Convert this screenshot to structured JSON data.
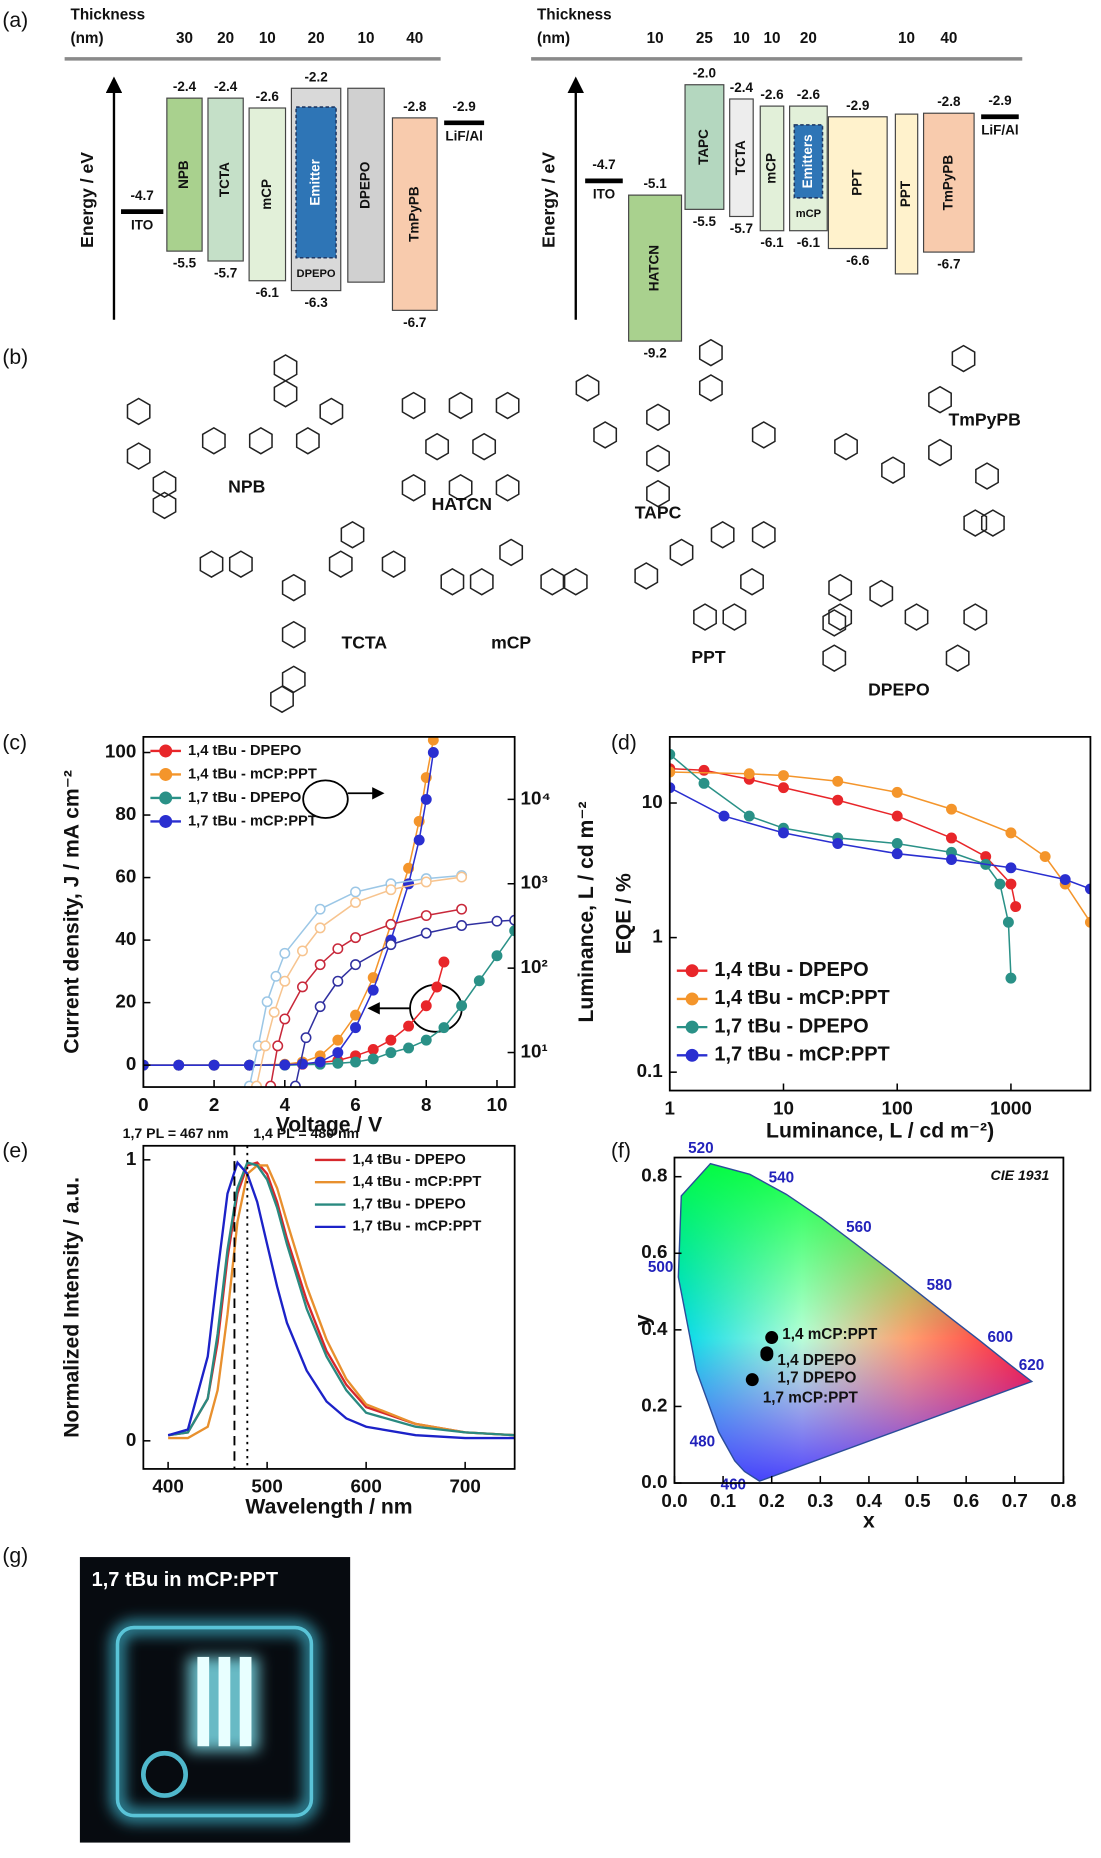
{
  "panel_labels": [
    "(a)",
    "(b)",
    "(c)",
    "(d)",
    "(e)",
    "(f)",
    "(g)"
  ],
  "energy_diagrams": [
    {
      "thickness_title": "Thickness",
      "thickness_unit": "(nm)",
      "axis_label": "Energy / eV",
      "electrodes": [
        {
          "name": "ITO",
          "level": -4.7
        },
        {
          "name": "LiF/Al",
          "level": -2.9
        }
      ],
      "layers": [
        {
          "name": "NPB",
          "lumo": -2.4,
          "homo": -5.5,
          "thickness": 30,
          "color": "#a9d18e"
        },
        {
          "name": "TCTA",
          "lumo": -2.4,
          "homo": -5.7,
          "thickness": 20,
          "color": "#c5e0c8"
        },
        {
          "name": "mCP",
          "lumo": -2.6,
          "homo": -6.1,
          "thickness": 10,
          "color": "#e2f0d9"
        },
        {
          "name": "DPEPO",
          "lumo": -2.2,
          "homo": -6.3,
          "thickness": 20,
          "color": "#d9d9d9",
          "emitter": "Emitter"
        },
        {
          "name": "DPEPO",
          "thickness": 10,
          "color": "#d0d0d0"
        },
        {
          "name": "TmPyPB",
          "lumo": -2.8,
          "homo": -6.7,
          "thickness": 40,
          "color": "#f8cbad"
        }
      ]
    },
    {
      "thickness_title": "Thickness",
      "thickness_unit": "(nm)",
      "axis_label": "Energy / eV",
      "electrodes": [
        {
          "name": "ITO",
          "level": -4.7
        },
        {
          "name": "LiF/Al",
          "level": -2.9
        }
      ],
      "layers": [
        {
          "name": "HATCN",
          "lumo": -5.1,
          "homo": -9.2,
          "thickness": 10,
          "color": "#a9d18e"
        },
        {
          "name": "TAPC",
          "lumo": {
            "value": -2,
            "label": "-2.0"
          },
          "homo": -5.5,
          "thickness": 25,
          "color": "#b4d7bf"
        },
        {
          "name": "TCTA",
          "lumo": -2.4,
          "homo": -5.7,
          "thickness": 10,
          "color": "#ededed"
        },
        {
          "name": "mCP",
          "lumo": -2.6,
          "homo": -6.1,
          "thickness": 10,
          "color": "#e2f0d9"
        },
        {
          "name": "mCP",
          "lumo": -2.6,
          "homo": -6.1,
          "thickness": 20,
          "color": "#e2f0d9",
          "emitter": "Emitters"
        },
        {
          "name": "PPT",
          "lumo": -2.9,
          "homo": -6.6,
          "color": "#fff2cc"
        },
        {
          "name": "PPT",
          "thickness": 10,
          "color": "#fff2cc"
        },
        {
          "name": "TmPyPB",
          "lumo": -2.8,
          "homo": -6.7,
          "thickness": 40,
          "color": "#f8cbad"
        }
      ]
    }
  ],
  "molecules": [
    "NPB",
    "HATCN",
    "TAPC",
    "TmPyPB",
    "TCTA",
    "mCP",
    "PPT",
    "DPEPO"
  ],
  "chart_data": [
    {
      "type": "line",
      "x_label": "Voltage / V",
      "y_label": "Current density, J / mA cm⁻²",
      "y2_label": "Luminance, L / cd m⁻²",
      "xlim": [
        0,
        10.5
      ],
      "xticks": [
        0,
        2,
        4,
        6,
        8,
        10
      ],
      "ylim": [
        -7,
        105
      ],
      "yticks": [
        0,
        20,
        40,
        60,
        80,
        100
      ],
      "y2lim": [
        3.9,
        55000
      ],
      "y2_scale": "log",
      "y2ticks": [
        {
          "value": 10,
          "label": "10¹"
        },
        {
          "value": 100,
          "label": "10²"
        },
        {
          "value": 1000,
          "label": "10³"
        },
        {
          "value": 10000,
          "label": "10⁴"
        }
      ],
      "legend": "upper left",
      "markers": true,
      "series": [
        {
          "name": "1,4 tBu - DPEPO",
          "color": "#e8262a",
          "x": [
            0,
            1,
            2,
            3,
            4,
            4.5,
            5,
            5.5,
            6,
            6.5,
            7,
            7.5,
            8,
            8.3,
            8.5
          ],
          "values": [
            0,
            0,
            0,
            0,
            0.1,
            0.3,
            0.8,
            1.5,
            3,
            5,
            8,
            12.5,
            19,
            25,
            33
          ]
        },
        {
          "name": "1,4 tBu - mCP:PPT",
          "color": "#f4952b",
          "x": [
            0,
            1,
            2,
            3,
            4,
            4.5,
            5,
            5.5,
            6,
            6.5,
            7,
            7.5,
            7.8,
            8,
            8.2
          ],
          "values": [
            0,
            0,
            0,
            0,
            0.3,
            1,
            3,
            8,
            16,
            28,
            45,
            63,
            78,
            92,
            104
          ]
        },
        {
          "name": "1,7 tBu - DPEPO",
          "color": "#2a9187",
          "x": [
            0,
            1,
            2,
            3,
            4,
            5,
            5.5,
            6,
            6.5,
            7,
            7.5,
            8,
            8.5,
            9,
            9.5,
            10,
            10.5
          ],
          "values": [
            0,
            0,
            0,
            0,
            0,
            0.3,
            0.6,
            1,
            2,
            4,
            5.5,
            8,
            12,
            19,
            27,
            35,
            43
          ]
        },
        {
          "name": "1,7 tBu - mCP:PPT",
          "color": "#2a2fd0",
          "x": [
            0,
            1,
            2,
            3,
            4,
            4.5,
            5,
            5.5,
            6,
            6.5,
            7,
            7.5,
            7.8,
            8,
            8.2
          ],
          "values": [
            0,
            0,
            0,
            0,
            0.1,
            0.4,
            1,
            4,
            12,
            24,
            40,
            58,
            72,
            85,
            100
          ]
        },
        {
          "color": "#9cc7e6",
          "axis": "y2",
          "hollow": true,
          "x": [
            3,
            3.25,
            3.5,
            3.75,
            4,
            5,
            6,
            7,
            8,
            9
          ],
          "values": [
            4,
            12,
            40,
            80,
            150,
            500,
            800,
            1000,
            1150,
            1250
          ]
        },
        {
          "color": "#f7c48f",
          "axis": "y2",
          "hollow": true,
          "x": [
            3.2,
            3.45,
            3.7,
            4,
            4.5,
            5,
            6,
            7,
            8,
            9
          ],
          "values": [
            4,
            12,
            30,
            70,
            160,
            300,
            600,
            850,
            1050,
            1200
          ]
        },
        {
          "color": "#c8283a",
          "axis": "y2",
          "hollow": true,
          "x": [
            3.6,
            3.8,
            4,
            4.5,
            5,
            5.5,
            6,
            7,
            8,
            9
          ],
          "values": [
            4,
            12,
            25,
            60,
            110,
            170,
            230,
            330,
            420,
            500
          ]
        },
        {
          "color": "#3030a0",
          "axis": "y2",
          "hollow": true,
          "x": [
            4.3,
            4.6,
            5,
            5.5,
            6,
            7,
            8,
            9,
            10,
            10.5
          ],
          "values": [
            4,
            15,
            35,
            70,
            110,
            190,
            260,
            320,
            360,
            370
          ]
        }
      ]
    },
    {
      "type": "line",
      "x_label": "Luminance, L / cd m⁻²)",
      "y_label": "EQE / %",
      "x_scale": "log",
      "y_scale": "log",
      "xlim": [
        1,
        5000
      ],
      "xticks": [
        1,
        10,
        100,
        1000
      ],
      "ylim": [
        0.073,
        31
      ],
      "yticks": [
        0.1,
        1,
        10
      ],
      "legend": "lower left",
      "markers": true,
      "series": [
        {
          "name": "1,4 tBu - DPEPO",
          "color": "#e8262a",
          "x": [
            1,
            2,
            5,
            10,
            30,
            100,
            300,
            600,
            1000,
            1100
          ],
          "values": [
            18,
            17.5,
            15,
            13,
            10.5,
            8,
            5.5,
            4,
            2.5,
            1.7
          ]
        },
        {
          "name": "1,4 tBu - mCP:PPT",
          "color": "#f4952b",
          "x": [
            1,
            5,
            10,
            30,
            100,
            300,
            1000,
            2000,
            3000,
            5000
          ],
          "values": [
            17,
            16.5,
            16,
            14.5,
            12,
            9,
            6,
            4,
            2.5,
            1.3
          ]
        },
        {
          "name": "1,7 tBu - DPEPO",
          "color": "#2a9187",
          "x": [
            1,
            2,
            5,
            10,
            30,
            100,
            300,
            600,
            800,
            950,
            1000
          ],
          "values": [
            23,
            14,
            8,
            6.5,
            5.5,
            5,
            4.3,
            3.5,
            2.5,
            1.3,
            0.5
          ]
        },
        {
          "name": "1,7 tBu - mCP:PPT",
          "color": "#2a2fd0",
          "x": [
            1,
            3,
            10,
            30,
            100,
            300,
            1000,
            3000,
            5000
          ],
          "values": [
            13,
            8,
            6,
            5,
            4.2,
            3.8,
            3.3,
            2.7,
            2.3
          ]
        }
      ]
    },
    {
      "type": "line",
      "x_label": "Wavelength / nm",
      "y_label": "Normalized Intensity / a.u.",
      "xlim": [
        375,
        750
      ],
      "xticks": [
        400,
        500,
        600,
        700
      ],
      "ylim": [
        -0.1,
        1.05
      ],
      "yticks": [
        0,
        1
      ],
      "legend": "upper right",
      "markers": false,
      "x": [
        400,
        420,
        440,
        450,
        460,
        470,
        480,
        490,
        500,
        510,
        520,
        540,
        560,
        580,
        600,
        650,
        700,
        750
      ],
      "vlines": [
        {
          "value": 467,
          "label": "1,7 PL = 467 nm",
          "style": "dashed"
        },
        {
          "value": 480,
          "label": "1,4 PL = 480 nm",
          "style": "dotted"
        }
      ],
      "series": [
        {
          "name": "1,4 tBu - DPEPO",
          "color": "#d6282c",
          "values": [
            0.02,
            0.03,
            0.15,
            0.35,
            0.65,
            0.88,
            0.98,
            0.99,
            0.95,
            0.85,
            0.72,
            0.5,
            0.32,
            0.2,
            0.12,
            0.06,
            0.03,
            0.02
          ]
        },
        {
          "name": "1,4 tBu - mCP:PPT",
          "color": "#e8902e",
          "values": [
            0.01,
            0.01,
            0.05,
            0.18,
            0.45,
            0.78,
            0.95,
            0.98,
            0.98,
            0.9,
            0.78,
            0.55,
            0.36,
            0.22,
            0.13,
            0.06,
            0.03,
            0.02
          ]
        },
        {
          "name": "1,7 tBu - DPEPO",
          "color": "#2a8a80",
          "values": [
            0.02,
            0.03,
            0.15,
            0.38,
            0.68,
            0.9,
            0.99,
            0.98,
            0.93,
            0.83,
            0.7,
            0.47,
            0.3,
            0.18,
            0.1,
            0.05,
            0.03,
            0.02
          ]
        },
        {
          "name": "1,7 tBu - mCP:PPT",
          "color": "#1c22c8",
          "values": [
            0.02,
            0.04,
            0.3,
            0.6,
            0.88,
            0.99,
            0.95,
            0.85,
            0.7,
            0.55,
            0.42,
            0.25,
            0.14,
            0.08,
            0.05,
            0.02,
            0.01,
            0.01
          ]
        }
      ]
    },
    {
      "type": "cie",
      "title": "CIE 1931",
      "x_label": "x",
      "y_label": "y",
      "xlim": [
        0,
        0.8
      ],
      "xticks": [
        {
          "value": 0,
          "label": "0.0"
        },
        0.1,
        0.2,
        0.3,
        0.4,
        0.5,
        0.6,
        0.7,
        0.8
      ],
      "ylim": [
        0,
        0.85
      ],
      "yticks": [
        {
          "value": 0,
          "label": "0.0"
        },
        0.2,
        0.4,
        0.6,
        0.8
      ],
      "locus_color": "#2222bb",
      "point_color": "#000000",
      "locus": [
        {
          "x": 0.175,
          "y": 0.005
        },
        {
          "nm": 460,
          "x": 0.144,
          "y": 0.03
        },
        {
          "x": 0.124,
          "y": 0.058
        },
        {
          "nm": 480,
          "x": 0.091,
          "y": 0.133
        },
        {
          "x": 0.045,
          "y": 0.295
        },
        {
          "nm": 500,
          "x": 0.008,
          "y": 0.538
        },
        {
          "x": 0.014,
          "y": 0.75
        },
        {
          "nm": 520,
          "x": 0.074,
          "y": 0.834
        },
        {
          "x": 0.155,
          "y": 0.806
        },
        {
          "nm": 540,
          "x": 0.23,
          "y": 0.754
        },
        {
          "x": 0.302,
          "y": 0.692
        },
        {
          "nm": 560,
          "x": 0.373,
          "y": 0.624
        },
        {
          "x": 0.444,
          "y": 0.555
        },
        {
          "nm": 580,
          "x": 0.512,
          "y": 0.487
        },
        {
          "x": 0.575,
          "y": 0.424
        },
        {
          "nm": 600,
          "x": 0.627,
          "y": 0.373
        },
        {
          "nm": 620,
          "x": 0.691,
          "y": 0.308
        },
        {
          "x": 0.735,
          "y": 0.265
        }
      ],
      "points": [
        {
          "label": "1,4 mCP:PPT",
          "x": 0.2,
          "y": 0.38
        },
        {
          "label": "1,4 DPEPO",
          "x": 0.19,
          "y": 0.34
        },
        {
          "label": "1,7 DPEPO",
          "x": 0.19,
          "y": 0.335
        },
        {
          "label": "1,7 mCP:PPT",
          "x": 0.16,
          "y": 0.27
        }
      ]
    }
  ],
  "photo": {
    "caption": "1,7 tBu in mCP:PPT"
  }
}
